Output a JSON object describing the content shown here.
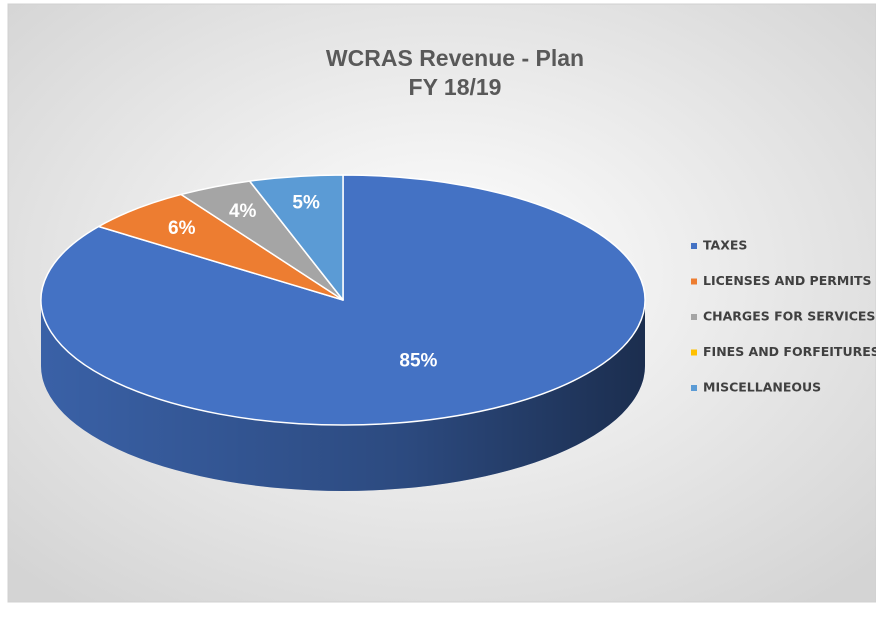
{
  "chart_data": {
    "type": "pie",
    "title": "WCRAS Revenue - Plan",
    "subtitle": "FY 18/19",
    "categories": [
      "TAXES",
      "LICENSES AND PERMITS",
      "CHARGES FOR SERVICES",
      "FINES AND FORFEITURES",
      "MISCELLANEOUS"
    ],
    "values": [
      85,
      6,
      4,
      0,
      5
    ],
    "value_labels": [
      "85%",
      "6%",
      "4%",
      null,
      "5%"
    ],
    "colors": [
      "#4472c4",
      "#ed7d31",
      "#a5a5a5",
      "#ffc000",
      "#5b9bd5"
    ],
    "legend": "right"
  }
}
